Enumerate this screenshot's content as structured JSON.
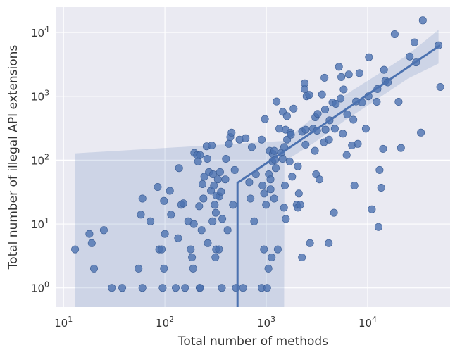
{
  "chart_data": {
    "type": "scatter",
    "xlabel": "Total number of methods",
    "ylabel": "Total number of illegal API extensions",
    "xscale": "log",
    "yscale": "log",
    "xlim": [
      8.5,
      65000
    ],
    "ylim": [
      0.5,
      25000
    ],
    "x_ticks": [
      {
        "value": 10,
        "base": "10",
        "exp": "1"
      },
      {
        "value": 100,
        "base": "10",
        "exp": "2"
      },
      {
        "value": 1000,
        "base": "10",
        "exp": "3"
      },
      {
        "value": 10000,
        "base": "10",
        "exp": "4"
      }
    ],
    "y_ticks": [
      {
        "value": 1,
        "base": "10",
        "exp": "0"
      },
      {
        "value": 10,
        "base": "10",
        "exp": "1"
      },
      {
        "value": 100,
        "base": "10",
        "exp": "2"
      },
      {
        "value": 1000,
        "base": "10",
        "exp": "3"
      },
      {
        "value": 10000,
        "base": "10",
        "exp": "4"
      }
    ],
    "grid": true,
    "background_color": "#EAEAF2",
    "grid_color": "#FFFFFF",
    "point_color": "#4C72B0",
    "line_color": "#4C72B0",
    "band_color": "#4C72B0",
    "points": [
      [
        13,
        4
      ],
      [
        18,
        7
      ],
      [
        19,
        5
      ],
      [
        20,
        2
      ],
      [
        25,
        8
      ],
      [
        30,
        1
      ],
      [
        38,
        1
      ],
      [
        55,
        2
      ],
      [
        58,
        14
      ],
      [
        60,
        25
      ],
      [
        60,
        1
      ],
      [
        72,
        11
      ],
      [
        85,
        38
      ],
      [
        88,
        4
      ],
      [
        93,
        4
      ],
      [
        95,
        1
      ],
      [
        98,
        23
      ],
      [
        98,
        2
      ],
      [
        100,
        7
      ],
      [
        112,
        33
      ],
      [
        115,
        14
      ],
      [
        128,
        1
      ],
      [
        135,
        6
      ],
      [
        138,
        75
      ],
      [
        145,
        20
      ],
      [
        152,
        21
      ],
      [
        158,
        1
      ],
      [
        170,
        11
      ],
      [
        180,
        4
      ],
      [
        185,
        3
      ],
      [
        190,
        2
      ],
      [
        193,
        10
      ],
      [
        195,
        130
      ],
      [
        208,
        120
      ],
      [
        212,
        95
      ],
      [
        218,
        19
      ],
      [
        220,
        1
      ],
      [
        222,
        120
      ],
      [
        222,
        1
      ],
      [
        230,
        8
      ],
      [
        235,
        42
      ],
      [
        240,
        25
      ],
      [
        245,
        55
      ],
      [
        258,
        165
      ],
      [
        262,
        105
      ],
      [
        265,
        5
      ],
      [
        272,
        65
      ],
      [
        285,
        33
      ],
      [
        290,
        170
      ],
      [
        295,
        11
      ],
      [
        298,
        60
      ],
      [
        305,
        40
      ],
      [
        310,
        20
      ],
      [
        315,
        3
      ],
      [
        318,
        15
      ],
      [
        320,
        4
      ],
      [
        322,
        28
      ],
      [
        333,
        50
      ],
      [
        342,
        4
      ],
      [
        345,
        27
      ],
      [
        350,
        65
      ],
      [
        358,
        32
      ],
      [
        365,
        1
      ],
      [
        368,
        12
      ],
      [
        395,
        50
      ],
      [
        400,
        105
      ],
      [
        415,
        8
      ],
      [
        428,
        180
      ],
      [
        442,
        230
      ],
      [
        455,
        270
      ],
      [
        470,
        20
      ],
      [
        488,
        70
      ],
      [
        502,
        1
      ],
      [
        545,
        210
      ],
      [
        590,
        1
      ],
      [
        625,
        220
      ],
      [
        680,
        45
      ],
      [
        700,
        25
      ],
      [
        720,
        160
      ],
      [
        760,
        11
      ],
      [
        790,
        60
      ],
      [
        900,
        1
      ],
      [
        900,
        210
      ],
      [
        920,
        40
      ],
      [
        950,
        4
      ],
      [
        952,
        30
      ],
      [
        970,
        440
      ],
      [
        995,
        20
      ],
      [
        1020,
        1
      ],
      [
        1050,
        2
      ],
      [
        1060,
        60
      ],
      [
        1080,
        140
      ],
      [
        1100,
        50
      ],
      [
        1102,
        35
      ],
      [
        1130,
        3
      ],
      [
        1148,
        95
      ],
      [
        1160,
        125
      ],
      [
        1198,
        25
      ],
      [
        1200,
        140
      ],
      [
        1220,
        100
      ],
      [
        1240,
        75
      ],
      [
        1265,
        830
      ],
      [
        1300,
        4
      ],
      [
        1345,
        310
      ],
      [
        1400,
        130
      ],
      [
        1450,
        105
      ],
      [
        1455,
        570
      ],
      [
        1495,
        18
      ],
      [
        1502,
        160
      ],
      [
        1528,
        40
      ],
      [
        1548,
        300
      ],
      [
        1560,
        12
      ],
      [
        1600,
        490
      ],
      [
        1605,
        210
      ],
      [
        1700,
        95
      ],
      [
        1730,
        270
      ],
      [
        1748,
        250
      ],
      [
        1800,
        55
      ],
      [
        1860,
        640
      ],
      [
        1998,
        20
      ],
      [
        2048,
        80
      ],
      [
        2050,
        18
      ],
      [
        2095,
        30
      ],
      [
        2160,
        20
      ],
      [
        2250,
        3
      ],
      [
        2258,
        280
      ],
      [
        2390,
        1300
      ],
      [
        2395,
        1600
      ],
      [
        2438,
        175
      ],
      [
        2445,
        300
      ],
      [
        2500,
        1000
      ],
      [
        2650,
        1050
      ],
      [
        2700,
        5
      ],
      [
        2900,
        310
      ],
      [
        3020,
        140
      ],
      [
        3045,
        470
      ],
      [
        3100,
        60
      ],
      [
        3165,
        290
      ],
      [
        3210,
        530
      ],
      [
        3348,
        50
      ],
      [
        3550,
        1070
      ],
      [
        3710,
        190
      ],
      [
        3750,
        1950
      ],
      [
        3800,
        620
      ],
      [
        3835,
        300
      ],
      [
        4130,
        5
      ],
      [
        4155,
        210
      ],
      [
        4210,
        420
      ],
      [
        4500,
        800
      ],
      [
        4650,
        15
      ],
      [
        4750,
        310
      ],
      [
        4850,
        760
      ],
      [
        5210,
        2900
      ],
      [
        5410,
        920
      ],
      [
        5500,
        2000
      ],
      [
        5700,
        260
      ],
      [
        5800,
        1280
      ],
      [
        6210,
        120
      ],
      [
        6290,
        520
      ],
      [
        6520,
        2200
      ],
      [
        7000,
        170
      ],
      [
        7230,
        430
      ],
      [
        7410,
        40
      ],
      [
        7690,
        830
      ],
      [
        8000,
        180
      ],
      [
        8300,
        2300
      ],
      [
        8800,
        800
      ],
      [
        9600,
        310
      ],
      [
        10200,
        1000
      ],
      [
        10300,
        4100
      ],
      [
        11000,
        17
      ],
      [
        12300,
        820
      ],
      [
        12500,
        1300
      ],
      [
        12800,
        9
      ],
      [
        13100,
        70
      ],
      [
        13600,
        37
      ],
      [
        14200,
        150
      ],
      [
        14500,
        2600
      ],
      [
        15000,
        1750
      ],
      [
        15800,
        1650
      ],
      [
        18500,
        9400
      ],
      [
        20200,
        820
      ],
      [
        21300,
        155
      ],
      [
        26000,
        4200
      ],
      [
        29000,
        7000
      ],
      [
        30000,
        3400
      ],
      [
        33500,
        270
      ],
      [
        35000,
        15500
      ],
      [
        50000,
        6300
      ],
      [
        52000,
        1400
      ]
    ],
    "regression_line": [
      [
        520,
        0.5
      ],
      [
        520,
        44
      ],
      [
        52000,
        6300
      ]
    ],
    "confidence_band": {
      "upper": [
        [
          13,
          128
        ],
        [
          1500,
          200
        ],
        [
          1510,
          205
        ],
        [
          3000,
          480
        ],
        [
          6000,
          1050
        ],
        [
          12000,
          2100
        ],
        [
          25000,
          4500
        ],
        [
          50000,
          11000
        ]
      ],
      "lower": [
        [
          50000,
          3250
        ],
        [
          25000,
          1900
        ],
        [
          12000,
          870
        ],
        [
          6000,
          420
        ],
        [
          3000,
          190
        ],
        [
          1510,
          95
        ],
        [
          1500,
          0.5
        ],
        [
          13,
          0.5
        ]
      ]
    }
  }
}
